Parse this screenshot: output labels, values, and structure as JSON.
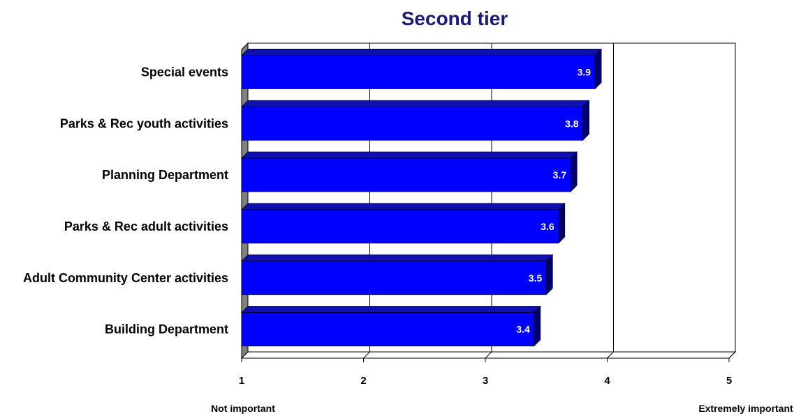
{
  "colors": {
    "bar_front": "#0000ff",
    "bar_top": "#1010b0",
    "bar_side": "#00006a",
    "wall": "#808080",
    "grid": "#000000",
    "title": "#1a1a7a"
  },
  "chart_data": {
    "type": "bar",
    "orientation": "horizontal",
    "title": "Second tier",
    "categories": [
      "Special events",
      "Parks & Rec youth activities",
      "Planning Department",
      "Parks & Rec adult activities",
      "Adult Community Center activities",
      "Building Department"
    ],
    "values": [
      3.9,
      3.8,
      3.7,
      3.6,
      3.5,
      3.4
    ],
    "value_labels": [
      "3.9",
      "3.8",
      "3.7",
      "3.6",
      "3.5",
      "3.4"
    ],
    "xlim": [
      1,
      5
    ],
    "x_ticks": [
      "1",
      "2",
      "3",
      "4",
      "5"
    ],
    "x_anchor_low": "Not important",
    "x_anchor_high": "Extremely important",
    "grid": true,
    "legend": "none"
  }
}
